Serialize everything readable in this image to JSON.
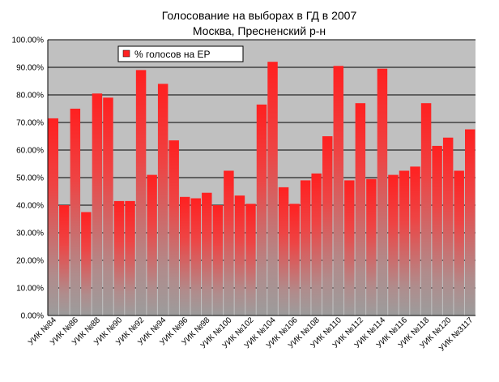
{
  "chart_data": {
    "type": "bar",
    "title": "Голосование на выборах в ГД в 2007",
    "subtitle": "Москва, Пресненский р-н",
    "xlabel": "",
    "ylabel": "",
    "ylim": [
      0,
      100
    ],
    "ytick_labels": [
      "0.00%",
      "10.00%",
      "20.00%",
      "30.00%",
      "40.00%",
      "50.00%",
      "60.00%",
      "70.00%",
      "80.00%",
      "90.00%",
      "100.00%"
    ],
    "grid": true,
    "legend_position": "top-left",
    "categories": [
      "УИК №84",
      "",
      "УИК №86",
      "",
      "УИК №88",
      "",
      "УИК №90",
      "",
      "УИК №92",
      "",
      "УИК №94",
      "",
      "УИК №96",
      "",
      "УИК №98",
      "",
      "УИК №100",
      "",
      "УИК №102",
      "",
      "УИК №104",
      "",
      "УИК №106",
      "",
      "УИК №108",
      "",
      "УИК №110",
      "",
      "УИК №112",
      "",
      "УИК №114",
      "",
      "УИК №116",
      "",
      "УИК №118",
      "",
      "УИК №120",
      "",
      "УИК №3117"
    ],
    "series": [
      {
        "name": "% голосов на ЕР",
        "values": [
          71.5,
          40.0,
          75.0,
          37.5,
          80.5,
          79.0,
          41.5,
          41.5,
          89.0,
          51.0,
          84.0,
          63.5,
          43.0,
          42.5,
          44.5,
          40.0,
          52.5,
          43.5,
          40.5,
          76.5,
          92.0,
          46.5,
          40.5,
          49.0,
          51.5,
          65.0,
          90.5,
          49.0,
          77.0,
          49.5,
          89.5,
          51.0,
          52.5,
          54.0,
          77.0,
          61.5,
          64.5,
          52.5,
          67.5
        ]
      }
    ],
    "colors": {
      "plot_background": "#c0c0c0",
      "bar_top": "#ff2222",
      "bar_bottom": "#a0a0a0",
      "gridline": "#000000"
    }
  }
}
